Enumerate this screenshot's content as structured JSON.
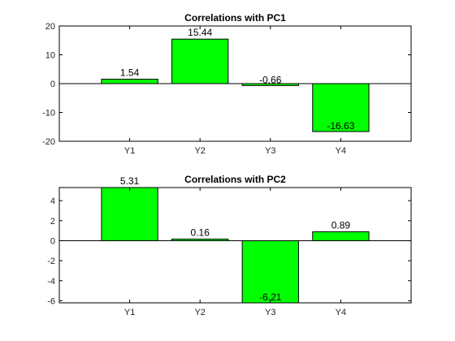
{
  "chart_data": [
    {
      "type": "bar",
      "title": "Correlations  with PC1",
      "categories": [
        "Y1",
        "Y2",
        "Y3",
        "Y4"
      ],
      "values": [
        1.54,
        15.44,
        -0.66,
        -16.63
      ],
      "data_labels": [
        "1.54",
        "15.44",
        "-0.66",
        "-16.63"
      ],
      "ylim": [
        -20,
        20
      ],
      "yticks": [
        -20,
        -10,
        0,
        10,
        20
      ],
      "ytick_labels": [
        "-20",
        "-10",
        "0",
        "10",
        "20"
      ],
      "bar_color": "#00ff00",
      "grid": false
    },
    {
      "type": "bar",
      "title": "Correlations  with PC2",
      "categories": [
        "Y1",
        "Y2",
        "Y3",
        "Y4"
      ],
      "values": [
        5.31,
        0.16,
        -6.21,
        0.89
      ],
      "data_labels": [
        "5.31",
        "0.16",
        "-6.21",
        "0.89"
      ],
      "ylim": [
        -6.21,
        5.31
      ],
      "yticks": [
        -6,
        -4,
        -2,
        0,
        2,
        4
      ],
      "ytick_labels": [
        "-6",
        "-4",
        "-2",
        "0",
        "2",
        "4"
      ],
      "bar_color": "#00ff00",
      "grid": false
    }
  ]
}
